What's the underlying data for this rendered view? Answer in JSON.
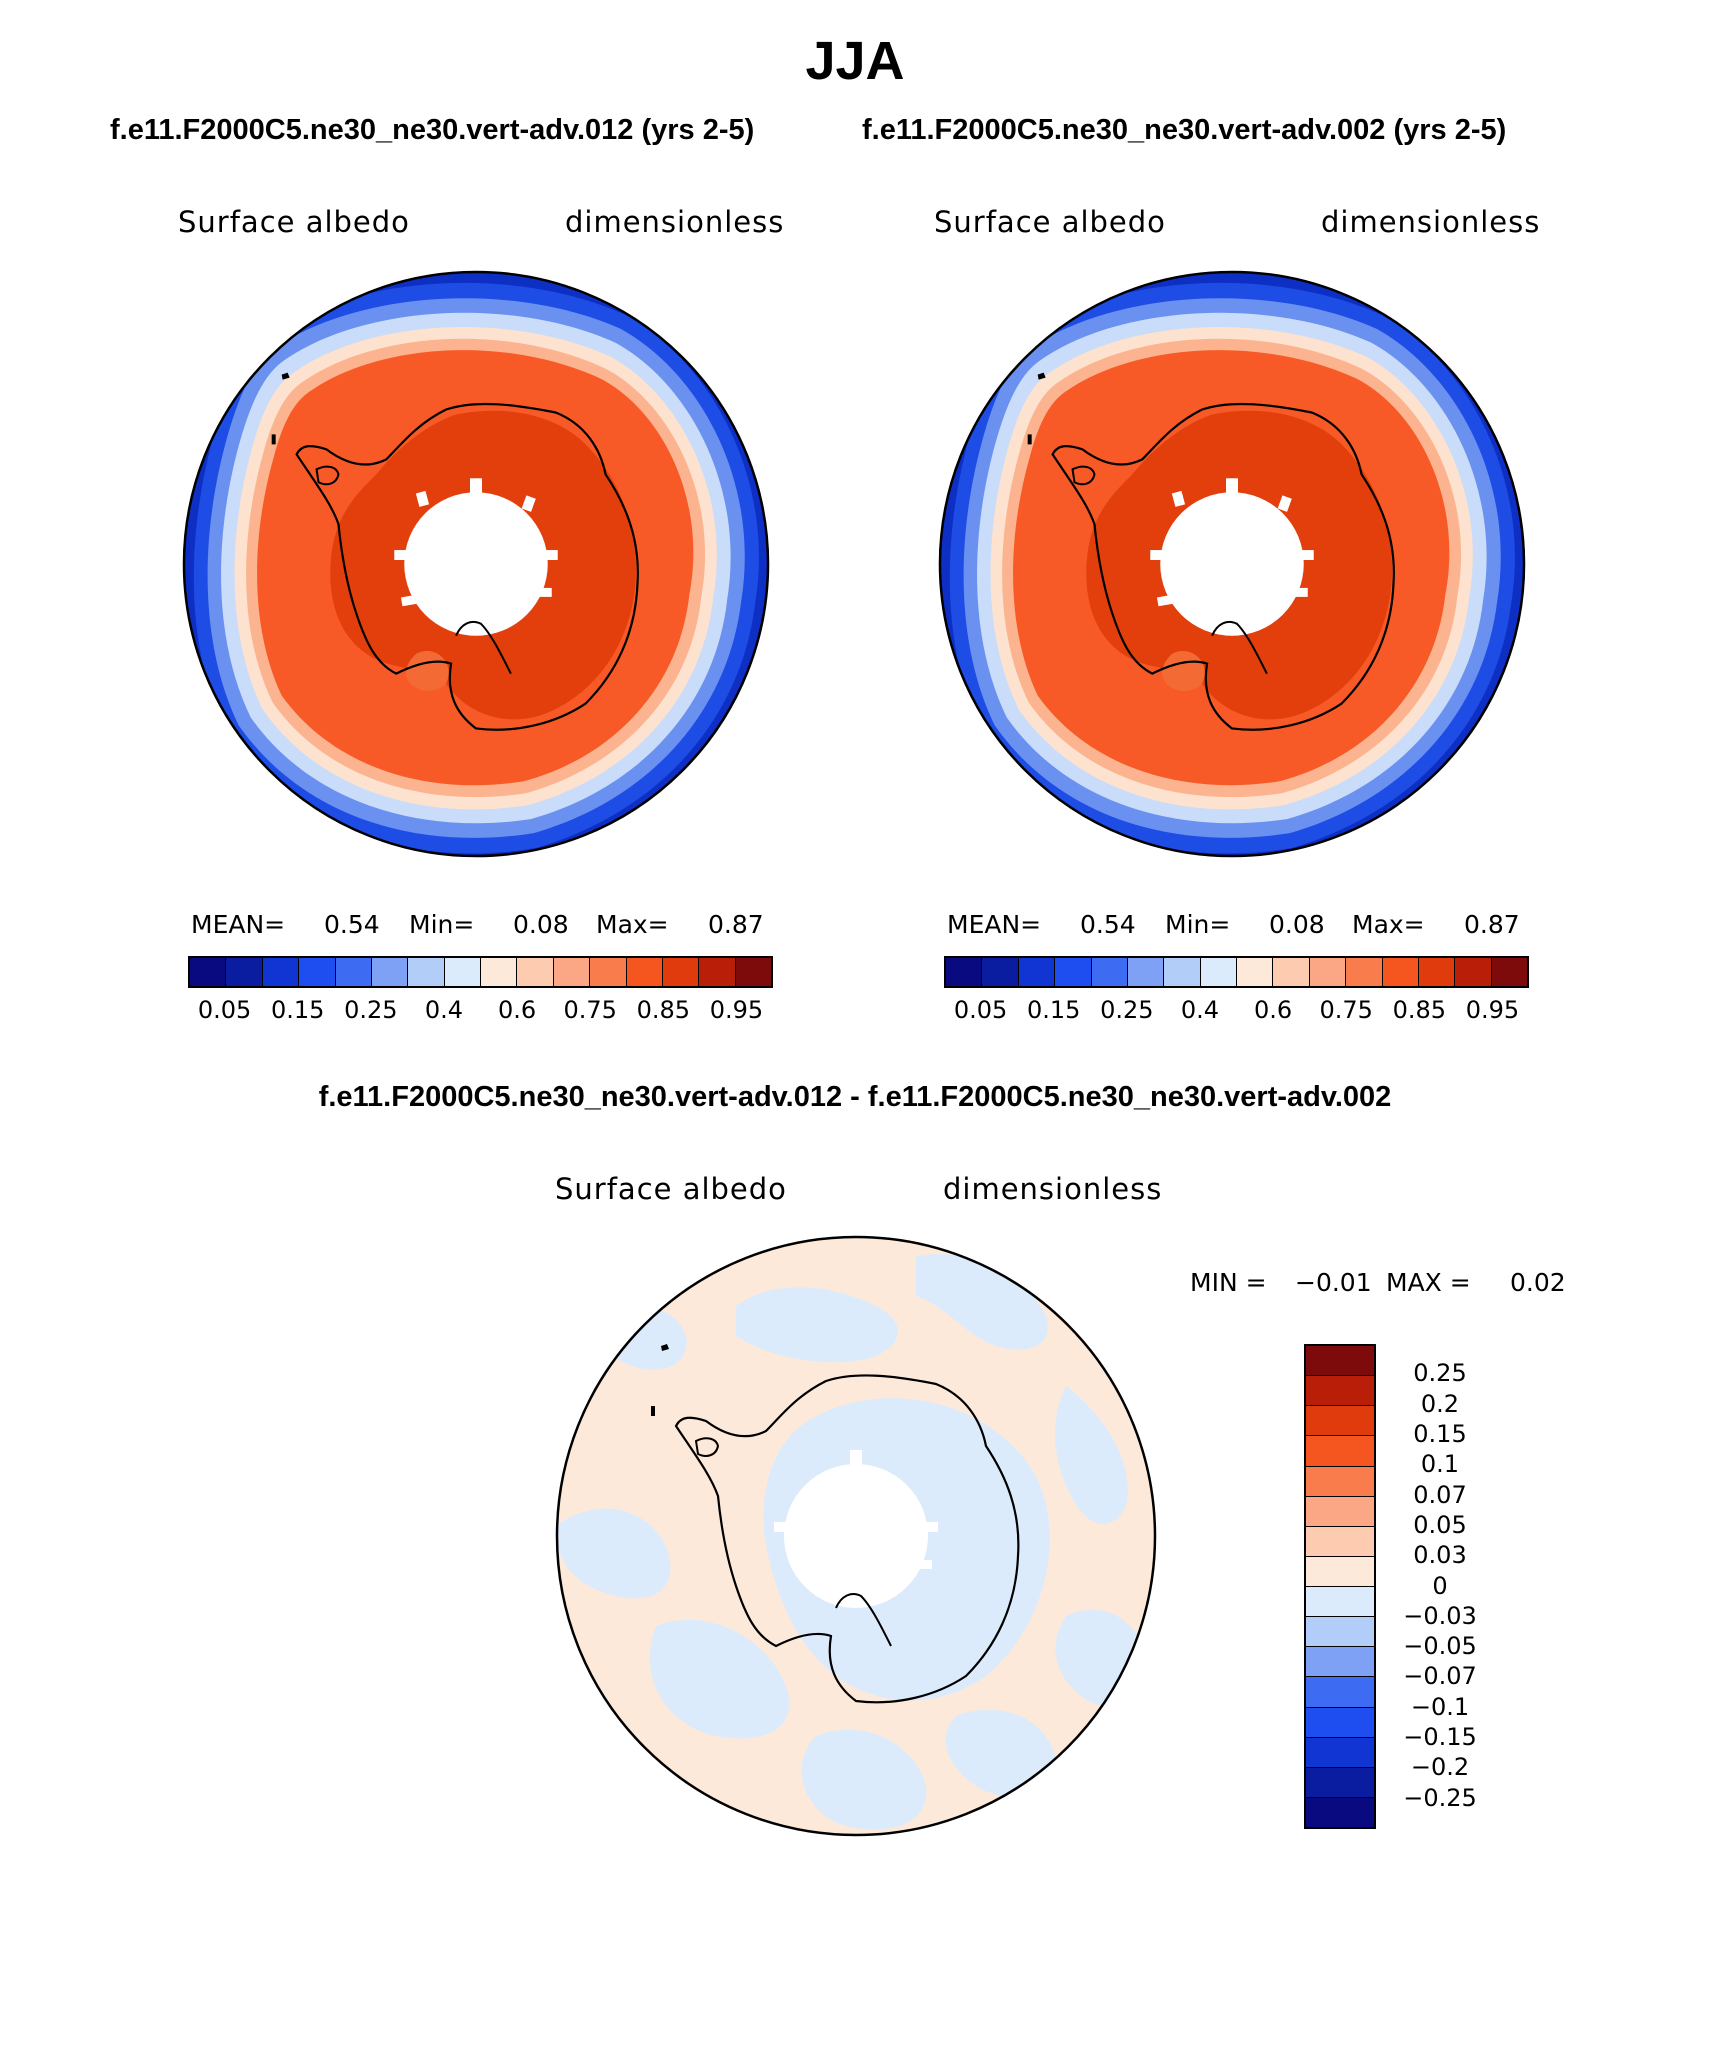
{
  "title": "JJA",
  "subtitle_left": "f.e11.F2000C5.ne30_ne30.vert-adv.012 (yrs 2-5)",
  "subtitle_right": "f.e11.F2000C5.ne30_ne30.vert-adv.002 (yrs 2-5)",
  "diff_title": "f.e11.F2000C5.ne30_ne30.vert-adv.012 - f.e11.F2000C5.ne30_ne30.vert-adv.002",
  "panels": [
    {
      "variable": "Surface albedo",
      "units": "dimensionless",
      "mean_label": "MEAN=",
      "mean": "0.54",
      "min_label": "Min=",
      "min": "0.08",
      "max_label": "Max=",
      "max": "0.87"
    },
    {
      "variable": "Surface albedo",
      "units": "dimensionless",
      "mean_label": "MEAN=",
      "mean": "0.54",
      "min_label": "Min=",
      "min": "0.08",
      "max_label": "Max=",
      "max": "0.87"
    }
  ],
  "diff_panel": {
    "variable": "Surface albedo",
    "units": "dimensionless",
    "min_label": "MIN =",
    "min": "−0.01",
    "max_label": "MAX =",
    "max": "0.02"
  },
  "colorbar_abs": {
    "ticks": [
      "0.05",
      "0.15",
      "0.25",
      "0.4",
      "0.6",
      "0.75",
      "0.85",
      "0.95"
    ],
    "colors": [
      "#0a0a80",
      "#0a1ca0",
      "#1035d2",
      "#1f4ef0",
      "#3d6bf2",
      "#7ea0f5",
      "#b2cdf8",
      "#dcebfc",
      "#fde9d9",
      "#fccbb0",
      "#fba785",
      "#f97d4c",
      "#f5561f",
      "#df3b0c",
      "#b91f08",
      "#7d0b0b"
    ]
  },
  "colorbar_diff": {
    "ticks": [
      "0.25",
      "0.2",
      "0.15",
      "0.1",
      "0.07",
      "0.05",
      "0.03",
      "0",
      "−0.03",
      "−0.05",
      "−0.07",
      "−0.1",
      "−0.15",
      "−0.2",
      "−0.25"
    ],
    "colors": [
      "#7d0b0b",
      "#b91f08",
      "#df3b0c",
      "#f5561f",
      "#f97d4c",
      "#fba785",
      "#fccbb0",
      "#fde9d9",
      "#dcebfc",
      "#b2cdf8",
      "#7ea0f5",
      "#3d6bf2",
      "#1f4ef0",
      "#1035d2",
      "#0a1ca0",
      "#0a0a80"
    ]
  }
}
